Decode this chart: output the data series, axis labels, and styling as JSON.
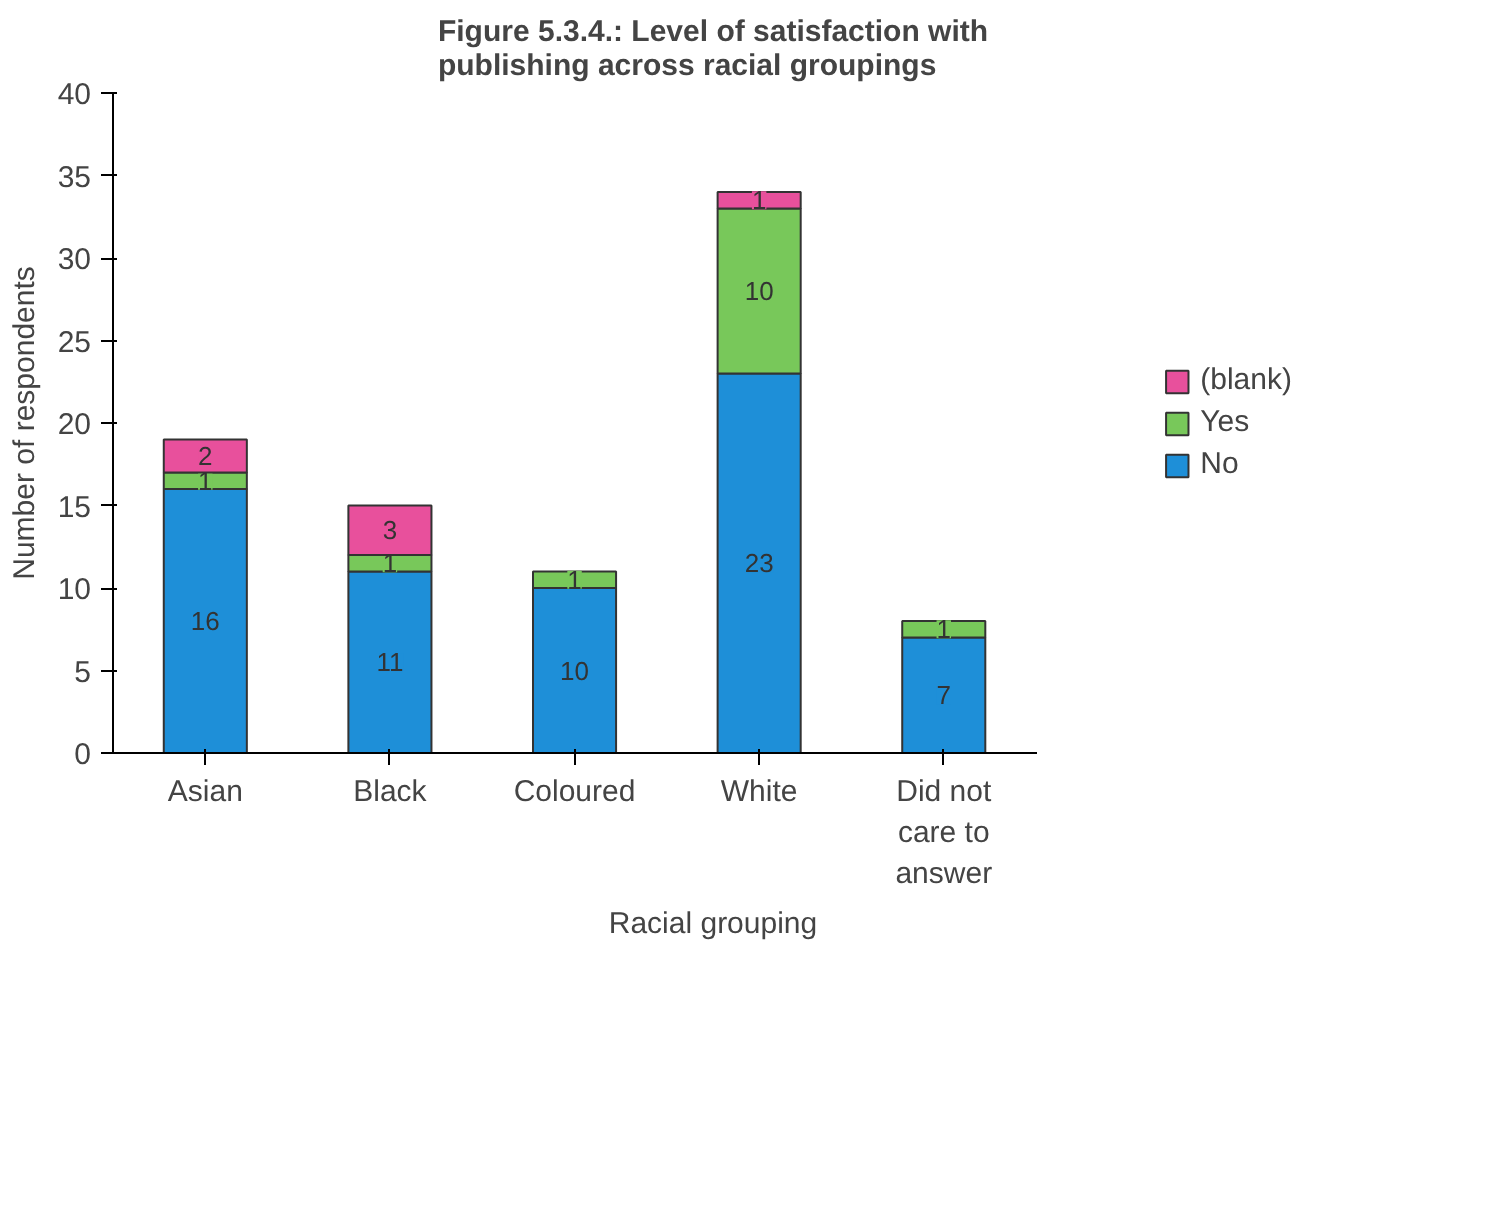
{
  "chart_data": {
    "type": "bar",
    "title": "Figure 5.3.4.: Level of satisfaction with publishing across racial groupings",
    "xlabel": "Racial grouping",
    "ylabel": "Number of respondents",
    "categories": [
      "Asian",
      "Black",
      "Coloured",
      "White",
      "Did not care to answer"
    ],
    "series": [
      {
        "name": "No",
        "color": "#1e8fd8",
        "values": [
          16,
          11,
          10,
          23,
          7
        ]
      },
      {
        "name": "Yes",
        "color": "#78c85a",
        "values": [
          1,
          1,
          1,
          10,
          1
        ]
      },
      {
        "name": "(blank)",
        "color": "#e8509c",
        "values": [
          2,
          3,
          null,
          1,
          null
        ]
      }
    ],
    "stacked": true,
    "data_labels": true,
    "ylim": [
      0,
      40
    ],
    "yticks": [
      0,
      5,
      10,
      15,
      20,
      25,
      30,
      35,
      40
    ],
    "grid": false,
    "legend": "right"
  }
}
